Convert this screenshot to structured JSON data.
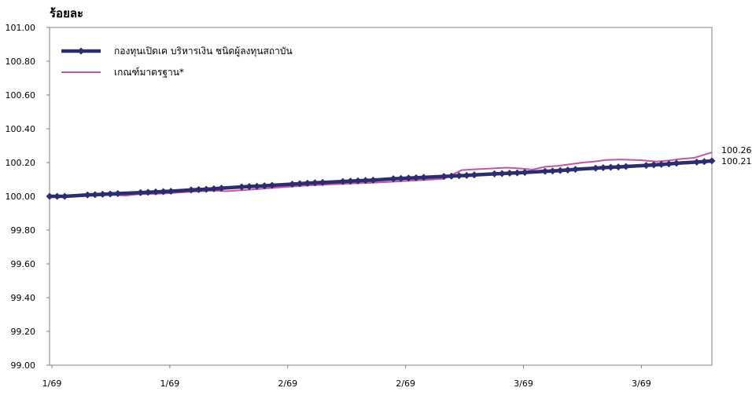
{
  "chart_data": {
    "type": "line",
    "title": "ร้อยละ",
    "x_tick_labels": [
      "1/69",
      "1/69",
      "2/69",
      "2/69",
      "3/69",
      "3/69"
    ],
    "y_tick_labels": [
      "99.00",
      "99.20",
      "99.40",
      "99.60",
      "99.80",
      "100.00",
      "100.20",
      "100.40",
      "100.60",
      "100.80",
      "101.00"
    ],
    "ylim": [
      99.0,
      101.0
    ],
    "grid": false,
    "legend_position": "top-left",
    "series": [
      {
        "name": "กองทุนเปิดเค บริหารเงิน ชนิดผู้ลงทุนสถาบัน",
        "color": "#2b2d6e",
        "marker": "diamond",
        "end_label": "100.21",
        "points": [
          [
            0,
            100.0
          ],
          [
            3,
            100.0
          ],
          [
            6,
            100.0
          ],
          [
            15,
            100.008
          ],
          [
            18,
            100.01
          ],
          [
            21,
            100.012
          ],
          [
            24,
            100.014
          ],
          [
            27,
            100.016
          ],
          [
            36,
            100.022
          ],
          [
            39,
            100.024
          ],
          [
            42,
            100.026
          ],
          [
            45,
            100.028
          ],
          [
            48,
            100.03
          ],
          [
            56,
            100.038
          ],
          [
            59,
            100.04
          ],
          [
            62,
            100.042
          ],
          [
            65,
            100.045
          ],
          [
            68,
            100.048
          ],
          [
            76,
            100.056
          ],
          [
            79,
            100.058
          ],
          [
            82,
            100.06
          ],
          [
            85,
            100.062
          ],
          [
            88,
            100.065
          ],
          [
            96,
            100.072
          ],
          [
            99,
            100.075
          ],
          [
            102,
            100.078
          ],
          [
            105,
            100.08
          ],
          [
            108,
            100.082
          ],
          [
            116,
            100.088
          ],
          [
            119,
            100.09
          ],
          [
            122,
            100.092
          ],
          [
            125,
            100.094
          ],
          [
            128,
            100.096
          ],
          [
            136,
            100.104
          ],
          [
            139,
            100.106
          ],
          [
            142,
            100.108
          ],
          [
            145,
            100.11
          ],
          [
            148,
            100.112
          ],
          [
            156,
            100.118
          ],
          [
            159,
            100.12
          ],
          [
            162,
            100.122
          ],
          [
            165,
            100.124
          ],
          [
            168,
            100.127
          ],
          [
            176,
            100.133
          ],
          [
            179,
            100.135
          ],
          [
            182,
            100.137
          ],
          [
            185,
            100.139
          ],
          [
            188,
            100.141
          ],
          [
            196,
            100.148
          ],
          [
            199,
            100.15
          ],
          [
            202,
            100.153
          ],
          [
            205,
            100.156
          ],
          [
            208,
            100.16
          ],
          [
            216,
            100.167
          ],
          [
            219,
            100.17
          ],
          [
            222,
            100.172
          ],
          [
            225,
            100.174
          ],
          [
            228,
            100.177
          ],
          [
            236,
            100.183
          ],
          [
            239,
            100.186
          ],
          [
            242,
            100.189
          ],
          [
            245,
            100.192
          ],
          [
            248,
            100.196
          ],
          [
            256,
            100.203
          ],
          [
            259,
            100.206
          ],
          [
            262,
            100.21
          ]
        ]
      },
      {
        "name": "เกณฑ์มาตรฐาน*",
        "color": "#c255a8",
        "marker": "none",
        "end_label": "100.26",
        "points": [
          [
            0,
            100.0
          ],
          [
            10,
            100.002
          ],
          [
            20,
            100.006
          ],
          [
            26,
            100.008
          ],
          [
            30,
            100.004
          ],
          [
            35,
            100.012
          ],
          [
            45,
            100.016
          ],
          [
            55,
            100.026
          ],
          [
            65,
            100.034
          ],
          [
            70,
            100.03
          ],
          [
            80,
            100.04
          ],
          [
            90,
            100.052
          ],
          [
            100,
            100.062
          ],
          [
            110,
            100.07
          ],
          [
            120,
            100.076
          ],
          [
            130,
            100.082
          ],
          [
            140,
            100.09
          ],
          [
            150,
            100.098
          ],
          [
            156,
            100.104
          ],
          [
            163,
            100.155
          ],
          [
            168,
            100.16
          ],
          [
            175,
            100.165
          ],
          [
            181,
            100.17
          ],
          [
            186,
            100.165
          ],
          [
            191,
            100.158
          ],
          [
            196,
            100.175
          ],
          [
            201,
            100.18
          ],
          [
            206,
            100.19
          ],
          [
            211,
            100.2
          ],
          [
            215,
            100.205
          ],
          [
            220,
            100.215
          ],
          [
            226,
            100.218
          ],
          [
            234,
            100.214
          ],
          [
            240,
            100.206
          ],
          [
            245,
            100.212
          ],
          [
            250,
            100.222
          ],
          [
            255,
            100.228
          ],
          [
            262,
            100.26
          ]
        ]
      }
    ]
  }
}
